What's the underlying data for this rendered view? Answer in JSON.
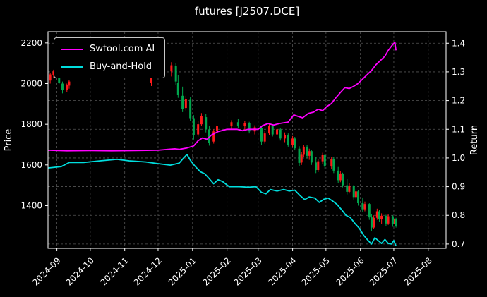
{
  "chart_data": {
    "type": "line+candlestick",
    "title": "futures [J2507.DCE]",
    "ylabel_left": "Price",
    "ylabel_right": "Return",
    "x_range": [
      "2024-08-24",
      "2025-08-17"
    ],
    "x_ticks": [
      "2024-09",
      "2024-10",
      "2024-11",
      "2024-12",
      "2025-01",
      "2025-02",
      "2025-03",
      "2025-04",
      "2025-05",
      "2025-06",
      "2025-07",
      "2025-08"
    ],
    "left_ticks": [
      1400,
      1600,
      1800,
      2000,
      2200
    ],
    "right_ticks": [
      "0.7",
      "0.8",
      "0.9",
      "1.0",
      "1.1",
      "1.2",
      "1.3",
      "1.4"
    ],
    "left_ylim": [
      1190,
      2255
    ],
    "right_ylim": [
      0.685,
      1.44
    ],
    "grid": true,
    "legend_position": "upper-left",
    "colors": {
      "background": "#000000",
      "grid": "#555555",
      "spine": "#ffffff",
      "text": "#ffffff",
      "candle_up": "#ff1a1a",
      "candle_down": "#00a64d"
    },
    "series": [
      {
        "name": "Swtool.com AI",
        "color": "#ff00ff",
        "axis": "right",
        "points": [
          [
            "2024-08-24",
            1.027
          ],
          [
            "2024-09-10",
            1.025
          ],
          [
            "2024-10-01",
            1.026
          ],
          [
            "2024-10-20",
            1.025
          ],
          [
            "2024-11-10",
            1.026
          ],
          [
            "2024-12-01",
            1.027
          ],
          [
            "2024-12-10",
            1.03
          ],
          [
            "2024-12-16",
            1.032
          ],
          [
            "2024-12-20",
            1.03
          ],
          [
            "2024-12-27",
            1.035
          ],
          [
            "2025-01-02",
            1.042
          ],
          [
            "2025-01-06",
            1.06
          ],
          [
            "2025-01-10",
            1.07
          ],
          [
            "2025-01-14",
            1.065
          ],
          [
            "2025-01-18",
            1.08
          ],
          [
            "2025-01-24",
            1.092
          ],
          [
            "2025-02-01",
            1.1
          ],
          [
            "2025-02-10",
            1.1
          ],
          [
            "2025-02-15",
            1.095
          ],
          [
            "2025-02-20",
            1.1
          ],
          [
            "2025-03-01",
            1.1
          ],
          [
            "2025-03-05",
            1.113
          ],
          [
            "2025-03-10",
            1.12
          ],
          [
            "2025-03-15",
            1.115
          ],
          [
            "2025-03-20",
            1.12
          ],
          [
            "2025-03-28",
            1.125
          ],
          [
            "2025-04-02",
            1.15
          ],
          [
            "2025-04-06",
            1.145
          ],
          [
            "2025-04-10",
            1.14
          ],
          [
            "2025-04-15",
            1.155
          ],
          [
            "2025-04-20",
            1.16
          ],
          [
            "2025-04-24",
            1.17
          ],
          [
            "2025-04-28",
            1.165
          ],
          [
            "2025-05-02",
            1.18
          ],
          [
            "2025-05-06",
            1.19
          ],
          [
            "2025-05-10",
            1.21
          ],
          [
            "2025-05-14",
            1.228
          ],
          [
            "2025-05-18",
            1.245
          ],
          [
            "2025-05-22",
            1.242
          ],
          [
            "2025-05-26",
            1.25
          ],
          [
            "2025-05-30",
            1.26
          ],
          [
            "2025-06-03",
            1.275
          ],
          [
            "2025-06-07",
            1.29
          ],
          [
            "2025-06-11",
            1.305
          ],
          [
            "2025-06-15",
            1.325
          ],
          [
            "2025-06-19",
            1.34
          ],
          [
            "2025-06-23",
            1.355
          ],
          [
            "2025-06-26",
            1.375
          ],
          [
            "2025-06-29",
            1.39
          ],
          [
            "2025-07-01",
            1.4
          ],
          [
            "2025-07-02",
            1.403
          ],
          [
            "2025-07-03",
            1.375
          ]
        ]
      },
      {
        "name": "Buy-and-Hold",
        "color": "#00dede",
        "axis": "right",
        "points": [
          [
            "2024-08-24",
            0.965
          ],
          [
            "2024-09-05",
            0.97
          ],
          [
            "2024-09-12",
            0.984
          ],
          [
            "2024-09-25",
            0.984
          ],
          [
            "2024-10-10",
            0.99
          ],
          [
            "2024-10-25",
            0.995
          ],
          [
            "2024-11-05",
            0.99
          ],
          [
            "2024-11-20",
            0.986
          ],
          [
            "2024-12-01",
            0.98
          ],
          [
            "2024-12-12",
            0.975
          ],
          [
            "2024-12-20",
            0.982
          ],
          [
            "2024-12-24",
            1.0
          ],
          [
            "2024-12-27",
            1.012
          ],
          [
            "2024-12-30",
            0.992
          ],
          [
            "2025-01-03",
            0.972
          ],
          [
            "2025-01-08",
            0.952
          ],
          [
            "2025-01-12",
            0.945
          ],
          [
            "2025-01-16",
            0.928
          ],
          [
            "2025-01-20",
            0.91
          ],
          [
            "2025-01-24",
            0.924
          ],
          [
            "2025-01-28",
            0.918
          ],
          [
            "2025-02-03",
            0.9
          ],
          [
            "2025-02-12",
            0.9
          ],
          [
            "2025-02-20",
            0.898
          ],
          [
            "2025-02-27",
            0.9
          ],
          [
            "2025-03-04",
            0.88
          ],
          [
            "2025-03-08",
            0.875
          ],
          [
            "2025-03-12",
            0.89
          ],
          [
            "2025-03-18",
            0.885
          ],
          [
            "2025-03-24",
            0.89
          ],
          [
            "2025-03-29",
            0.885
          ],
          [
            "2025-04-03",
            0.888
          ],
          [
            "2025-04-08",
            0.868
          ],
          [
            "2025-04-12",
            0.855
          ],
          [
            "2025-04-16",
            0.864
          ],
          [
            "2025-04-21",
            0.86
          ],
          [
            "2025-04-25",
            0.845
          ],
          [
            "2025-04-29",
            0.856
          ],
          [
            "2025-05-03",
            0.86
          ],
          [
            "2025-05-07",
            0.85
          ],
          [
            "2025-05-11",
            0.838
          ],
          [
            "2025-05-15",
            0.82
          ],
          [
            "2025-05-19",
            0.8
          ],
          [
            "2025-05-23",
            0.792
          ],
          [
            "2025-05-27",
            0.772
          ],
          [
            "2025-05-31",
            0.755
          ],
          [
            "2025-06-04",
            0.73
          ],
          [
            "2025-06-08",
            0.712
          ],
          [
            "2025-06-11",
            0.7
          ],
          [
            "2025-06-14",
            0.722
          ],
          [
            "2025-06-17",
            0.712
          ],
          [
            "2025-06-20",
            0.702
          ],
          [
            "2025-06-23",
            0.716
          ],
          [
            "2025-06-26",
            0.702
          ],
          [
            "2025-06-29",
            0.7
          ],
          [
            "2025-07-01",
            0.712
          ],
          [
            "2025-07-03",
            0.693
          ]
        ]
      }
    ],
    "candles": [
      [
        "2024-08-26",
        2015,
        2052,
        2000,
        2045
      ],
      [
        "2024-08-29",
        2040,
        2068,
        2028,
        2060
      ],
      [
        "2024-09-03",
        2055,
        2060,
        1998,
        2005
      ],
      [
        "2024-09-06",
        2000,
        2010,
        1952,
        1968
      ],
      [
        "2024-09-10",
        1970,
        2000,
        1958,
        1992
      ],
      [
        "2024-09-12",
        1990,
        2018,
        1975,
        2010
      ],
      [
        "2024-11-25",
        2005,
        2190,
        1988,
        2170
      ],
      [
        "2024-12-05",
        2050,
        2098,
        2040,
        2088
      ],
      [
        "2024-12-13",
        2060,
        2105,
        2035,
        2090
      ],
      [
        "2024-12-17",
        2085,
        2100,
        1995,
        2010
      ],
      [
        "2024-12-19",
        2005,
        2040,
        1930,
        1945
      ],
      [
        "2024-12-23",
        1940,
        1985,
        1860,
        1875
      ],
      [
        "2024-12-26",
        1880,
        1940,
        1868,
        1925
      ],
      [
        "2024-12-30",
        1920,
        1935,
        1815,
        1830
      ],
      [
        "2025-01-02",
        1830,
        1845,
        1725,
        1745
      ],
      [
        "2025-01-06",
        1750,
        1815,
        1740,
        1800
      ],
      [
        "2025-01-09",
        1800,
        1855,
        1790,
        1840
      ],
      [
        "2025-01-13",
        1835,
        1850,
        1760,
        1775
      ],
      [
        "2025-01-16",
        1775,
        1790,
        1695,
        1710
      ],
      [
        "2025-01-20",
        1715,
        1775,
        1705,
        1765
      ],
      [
        "2025-01-23",
        1765,
        1800,
        1750,
        1790
      ],
      [
        "2025-02-05",
        1790,
        1820,
        1775,
        1810
      ],
      [
        "2025-02-11",
        1810,
        1825,
        1780,
        1790
      ],
      [
        "2025-02-17",
        1790,
        1815,
        1770,
        1805
      ],
      [
        "2025-02-21",
        1805,
        1812,
        1755,
        1765
      ],
      [
        "2025-02-26",
        1765,
        1795,
        1750,
        1785
      ],
      [
        "2025-03-04",
        1780,
        1790,
        1700,
        1715
      ],
      [
        "2025-03-07",
        1715,
        1768,
        1705,
        1755
      ],
      [
        "2025-03-11",
        1755,
        1800,
        1745,
        1790
      ],
      [
        "2025-03-14",
        1790,
        1798,
        1740,
        1750
      ],
      [
        "2025-03-18",
        1750,
        1785,
        1738,
        1775
      ],
      [
        "2025-03-21",
        1775,
        1782,
        1720,
        1730
      ],
      [
        "2025-03-25",
        1730,
        1760,
        1712,
        1748
      ],
      [
        "2025-03-28",
        1748,
        1755,
        1690,
        1700
      ],
      [
        "2025-04-01",
        1700,
        1742,
        1688,
        1730
      ],
      [
        "2025-04-03",
        1730,
        1738,
        1672,
        1682
      ],
      [
        "2025-04-07",
        1680,
        1692,
        1595,
        1610
      ],
      [
        "2025-04-09",
        1612,
        1665,
        1600,
        1650
      ],
      [
        "2025-04-11",
        1650,
        1700,
        1640,
        1690
      ],
      [
        "2025-04-14",
        1690,
        1698,
        1632,
        1645
      ],
      [
        "2025-04-16",
        1645,
        1680,
        1625,
        1668
      ],
      [
        "2025-04-18",
        1668,
        1672,
        1600,
        1612
      ],
      [
        "2025-04-22",
        1612,
        1640,
        1560,
        1575
      ],
      [
        "2025-04-24",
        1575,
        1630,
        1565,
        1618
      ],
      [
        "2025-04-28",
        1618,
        1660,
        1605,
        1648
      ],
      [
        "2025-04-30",
        1648,
        1652,
        1580,
        1592
      ],
      [
        "2025-05-06",
        1592,
        1640,
        1582,
        1628
      ],
      [
        "2025-05-08",
        1628,
        1638,
        1560,
        1572
      ],
      [
        "2025-05-12",
        1572,
        1590,
        1510,
        1525
      ],
      [
        "2025-05-14",
        1525,
        1570,
        1515,
        1558
      ],
      [
        "2025-05-16",
        1558,
        1562,
        1490,
        1500
      ],
      [
        "2025-05-20",
        1500,
        1530,
        1455,
        1468
      ],
      [
        "2025-05-22",
        1468,
        1510,
        1460,
        1498
      ],
      [
        "2025-05-26",
        1498,
        1502,
        1430,
        1442
      ],
      [
        "2025-05-28",
        1442,
        1480,
        1432,
        1470
      ],
      [
        "2025-05-30",
        1470,
        1475,
        1400,
        1412
      ],
      [
        "2025-06-03",
        1412,
        1440,
        1370,
        1382
      ],
      [
        "2025-06-05",
        1382,
        1420,
        1372,
        1408
      ],
      [
        "2025-06-09",
        1408,
        1412,
        1330,
        1342
      ],
      [
        "2025-06-11",
        1342,
        1360,
        1275,
        1292
      ],
      [
        "2025-06-13",
        1292,
        1352,
        1285,
        1340
      ],
      [
        "2025-06-16",
        1340,
        1385,
        1330,
        1372
      ],
      [
        "2025-06-18",
        1372,
        1378,
        1322,
        1332
      ],
      [
        "2025-06-20",
        1332,
        1362,
        1310,
        1350
      ],
      [
        "2025-06-24",
        1350,
        1355,
        1300,
        1312
      ],
      [
        "2025-06-26",
        1312,
        1358,
        1305,
        1348
      ],
      [
        "2025-06-30",
        1348,
        1352,
        1296,
        1308
      ],
      [
        "2025-07-02",
        1308,
        1345,
        1298,
        1335
      ],
      [
        "2025-07-03",
        1335,
        1340,
        1292,
        1300
      ]
    ]
  }
}
